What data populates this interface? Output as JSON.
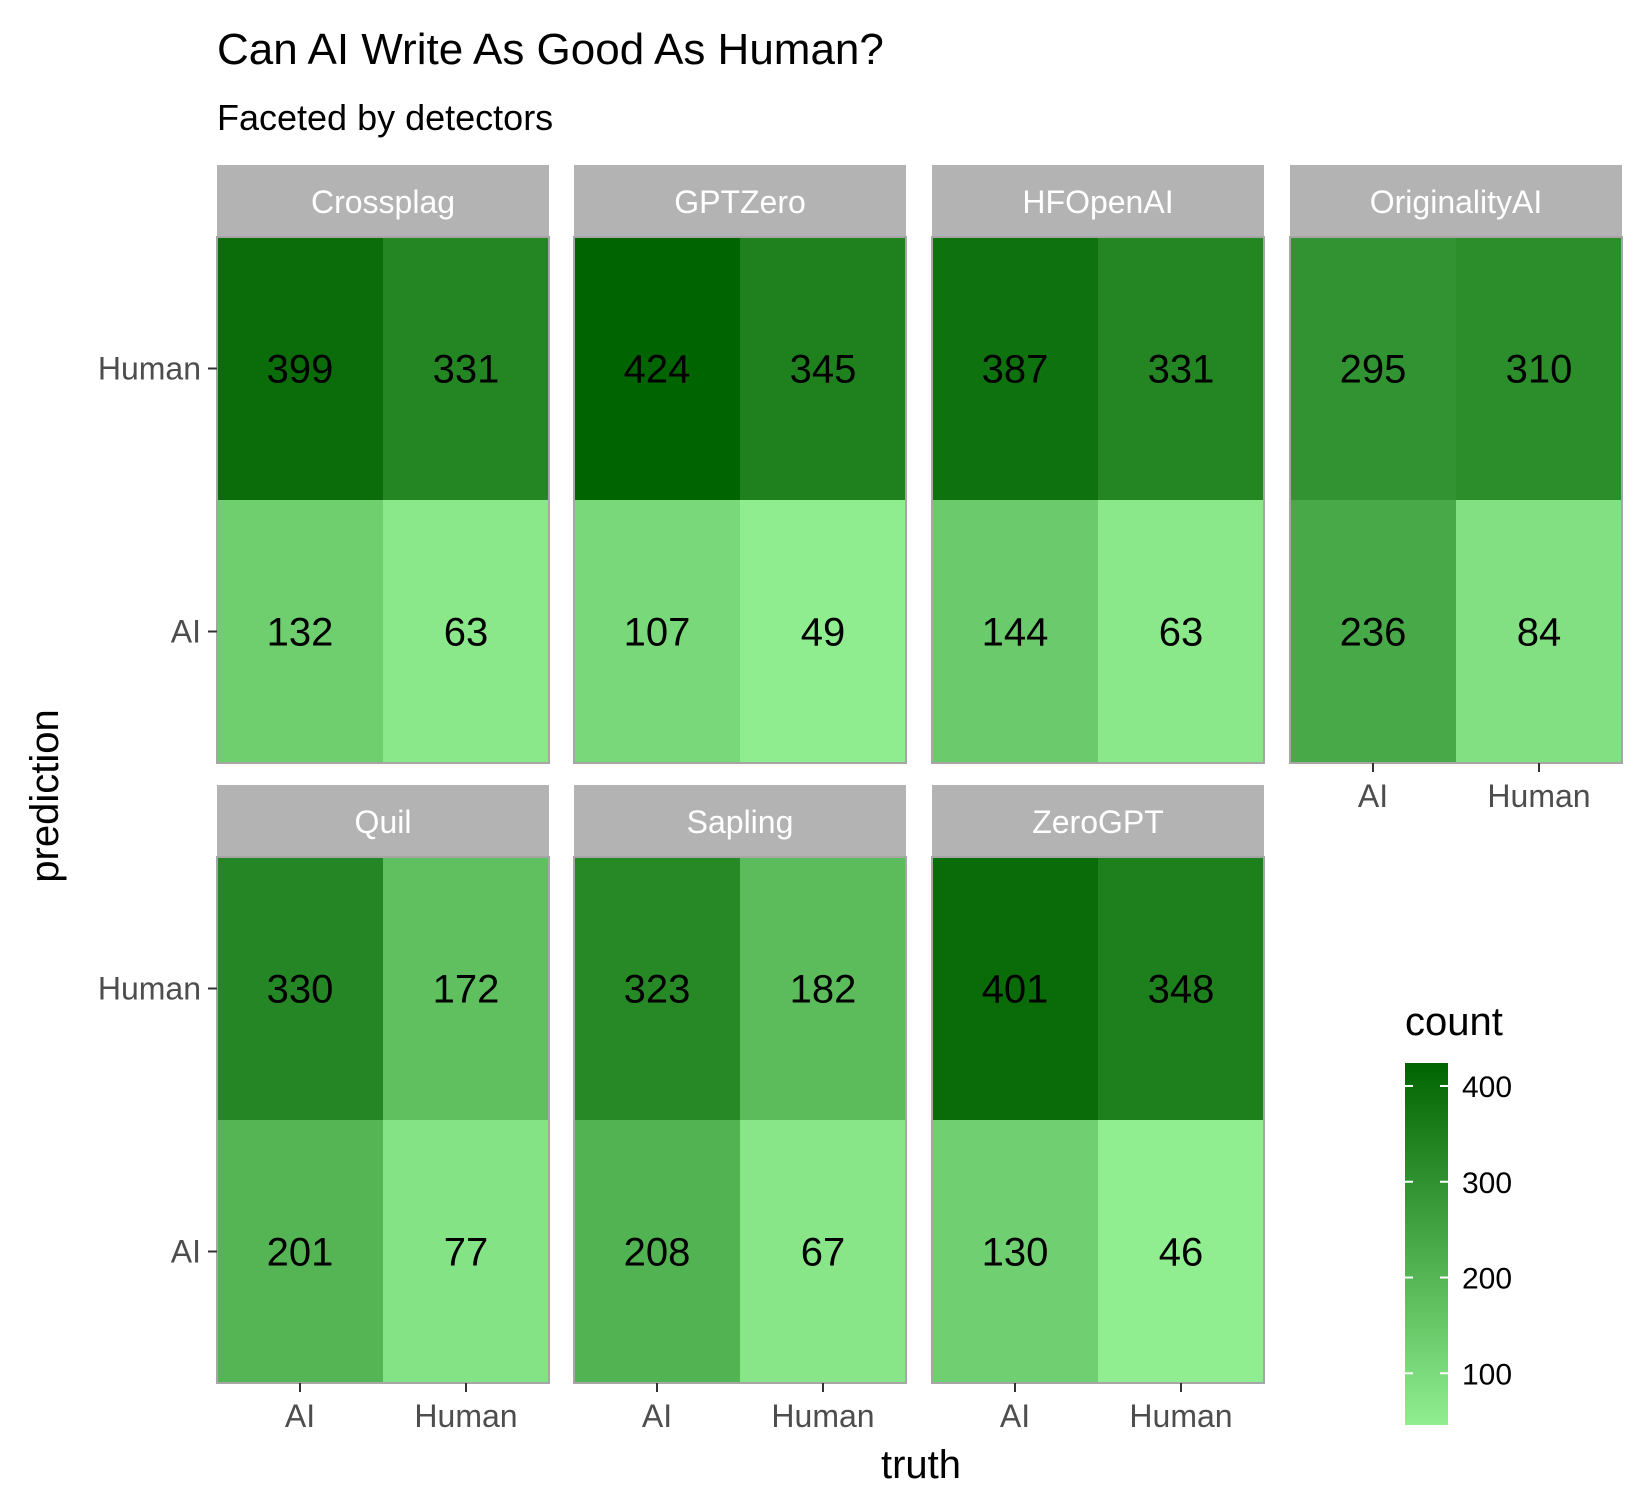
{
  "chart_data": {
    "type": "heatmap",
    "title": "Can AI Write As Good As Human?",
    "subtitle": "Faceted by detectors",
    "xlabel": "truth",
    "ylabel": "prediction",
    "x_categories": [
      "AI",
      "Human"
    ],
    "y_categories": [
      "Human",
      "AI"
    ],
    "facets": [
      {
        "name": "Crossplag",
        "cells": {
          "Human": {
            "AI": 399,
            "Human": 331
          },
          "AI": {
            "AI": 132,
            "Human": 63
          }
        }
      },
      {
        "name": "GPTZero",
        "cells": {
          "Human": {
            "AI": 424,
            "Human": 345
          },
          "AI": {
            "AI": 107,
            "Human": 49
          }
        }
      },
      {
        "name": "HFOpenAI",
        "cells": {
          "Human": {
            "AI": 387,
            "Human": 331
          },
          "AI": {
            "AI": 144,
            "Human": 63
          }
        }
      },
      {
        "name": "OriginalityAI",
        "cells": {
          "Human": {
            "AI": 295,
            "Human": 310
          },
          "AI": {
            "AI": 236,
            "Human": 84
          }
        }
      },
      {
        "name": "Quil",
        "cells": {
          "Human": {
            "AI": 330,
            "Human": 172
          },
          "AI": {
            "AI": 201,
            "Human": 77
          }
        }
      },
      {
        "name": "Sapling",
        "cells": {
          "Human": {
            "AI": 323,
            "Human": 182
          },
          "AI": {
            "AI": 208,
            "Human": 67
          }
        }
      },
      {
        "name": "ZeroGPT",
        "cells": {
          "Human": {
            "AI": 401,
            "Human": 348
          },
          "AI": {
            "AI": 130,
            "Human": 46
          }
        }
      }
    ],
    "legend": {
      "title": "count",
      "ticks": [
        100,
        200,
        300,
        400
      ],
      "range": [
        46,
        424
      ],
      "low_color": "#90EE90",
      "high_color": "#006400",
      "placement": "bottom-right"
    },
    "facet_strip_color": "#B3B3B3",
    "grid": false
  }
}
